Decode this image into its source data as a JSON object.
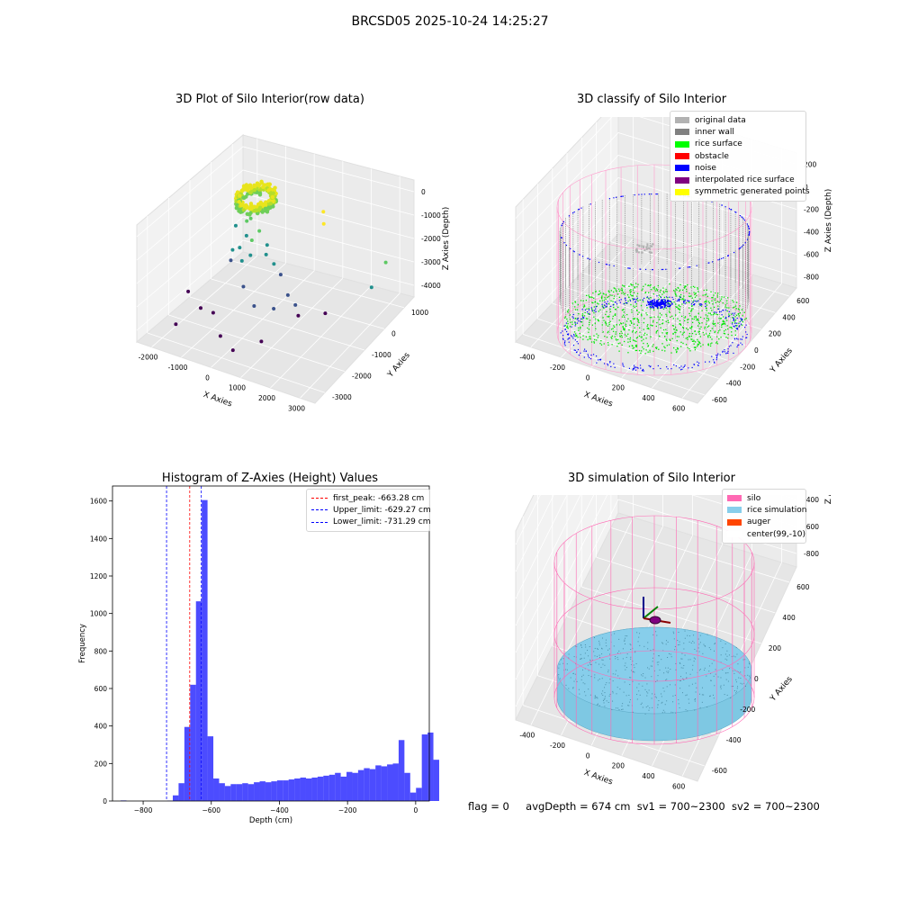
{
  "suptitle": "BRCSD05 2025-10-24 14:25:27",
  "footer": {
    "flag": "flag = 0",
    "avg_depth": "avgDepth = 674 cm",
    "sv1": "sv1 = 700~2300",
    "sv2": "sv2 = 700~2300"
  },
  "chart_data": [
    {
      "type": "scatter",
      "title": "3D Plot of Silo Interior(row data)",
      "xlabel": "X Axies",
      "ylabel": "Y Axies",
      "zlabel": "Z Axies (Depth)",
      "xticks": [
        "-2000",
        "-1000",
        "0",
        "1000",
        "2000",
        "3000"
      ],
      "yticks": [
        "-3000",
        "-2000",
        "-1000",
        "0",
        "1000"
      ],
      "zticks": [
        "-4000",
        "-3000",
        "-2000",
        "-1000",
        "0"
      ],
      "xlim": [
        -2200,
        3500
      ],
      "ylim": [
        -3400,
        1500
      ],
      "zlim": [
        -4700,
        300
      ],
      "colormap": "viridis",
      "grid": true
    },
    {
      "type": "scatter",
      "title": "3D classify of Silo Interior",
      "xlabel": "X Axies",
      "ylabel": "Y Axies",
      "zlabel": "Z Axies (Depth)",
      "xticks": [
        "-400",
        "-200",
        "0",
        "200",
        "400",
        "600"
      ],
      "yticks": [
        "-600",
        "-400",
        "-200",
        "0",
        "200",
        "400",
        "600"
      ],
      "zticks": [
        "-800",
        "-600",
        "-400",
        "-200",
        "0",
        "200"
      ],
      "xlim": [
        -520,
        760
      ],
      "ylim": [
        -700,
        720
      ],
      "zlim": [
        -950,
        300
      ],
      "legend": [
        {
          "label": "original data",
          "color": "#b2b2b2"
        },
        {
          "label": "inner wall",
          "color": "#808080"
        },
        {
          "label": "rice surface",
          "color": "#00ff00"
        },
        {
          "label": "obstacle",
          "color": "#ff0000"
        },
        {
          "label": "noise",
          "color": "#0000ff"
        },
        {
          "label": "interpolated rice surface",
          "color": "#800080"
        },
        {
          "label": "symmetric generated points",
          "color": "#ffff00"
        }
      ],
      "legend_position": "upper right",
      "grid": true
    },
    {
      "type": "bar",
      "title": "Histogram of Z-Axies (Height) Values",
      "xlabel": "Depth (cm)",
      "ylabel": "Frequency",
      "xlim": [
        -890,
        40
      ],
      "ylim": [
        0,
        1680
      ],
      "xticks": [
        -800,
        -600,
        -400,
        -200,
        0
      ],
      "yticks": [
        0,
        200,
        400,
        600,
        800,
        1000,
        1200,
        1400,
        1600
      ],
      "bin_start": -866,
      "bin_width": 17,
      "values": [
        3,
        0,
        0,
        0,
        0,
        0,
        0,
        0,
        2,
        30,
        95,
        395,
        620,
        1065,
        1605,
        345,
        120,
        95,
        80,
        90,
        90,
        95,
        90,
        100,
        105,
        100,
        105,
        110,
        110,
        115,
        120,
        125,
        120,
        125,
        130,
        135,
        140,
        150,
        130,
        155,
        150,
        165,
        175,
        170,
        190,
        185,
        195,
        200,
        325,
        150,
        45,
        70,
        355,
        365,
        220
      ],
      "bar_color": "#0000ff",
      "vlines": [
        {
          "label": "first_peak: -663.28 cm",
          "x": -663.28,
          "color": "#ff0000"
        },
        {
          "label": "Upper_limit: -629.27 cm",
          "x": -629.27,
          "color": "#0000ff"
        },
        {
          "label": "Lower_limit: -731.29 cm",
          "x": -731.29,
          "color": "#0000ff"
        }
      ],
      "legend_position": "upper right"
    },
    {
      "type": "scatter",
      "title": "3D simulation of Silo Interior",
      "xlabel": "X Axies",
      "ylabel": "Y Axies",
      "zlabel": "Z Axies (Depth)",
      "xticks": [
        "-400",
        "-200",
        "0",
        "200",
        "400",
        "600"
      ],
      "yticks": [
        "-600",
        "-400",
        "-200",
        "0",
        "200",
        "400",
        "600"
      ],
      "zticks": [
        "-800",
        "-600",
        "-400",
        "-200",
        "0",
        "200",
        "400"
      ],
      "xlim": [
        -520,
        760
      ],
      "ylim": [
        -700,
        720
      ],
      "zlim": [
        -950,
        480
      ],
      "legend": [
        {
          "label": "silo",
          "color": "#ff69b4"
        },
        {
          "label": "rice simulation",
          "color": "#87ceeb"
        },
        {
          "label": "auger",
          "color": "#ff4500"
        },
        {
          "label": "center(99,-10)",
          "color": "#ffffff"
        }
      ],
      "legend_position": "upper right",
      "grid": true
    }
  ]
}
